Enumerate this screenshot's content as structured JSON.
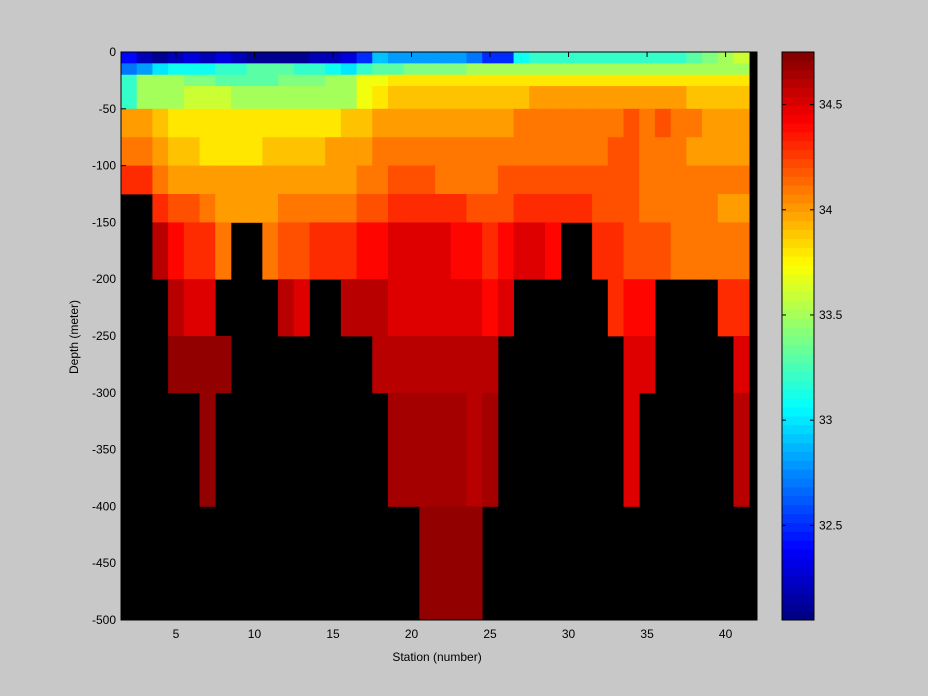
{
  "chart_data": {
    "type": "heatmap",
    "xlabel": "Station (number)",
    "ylabel": "Depth (meter)",
    "xlim": [
      1.5,
      42
    ],
    "ylim": [
      -500,
      0
    ],
    "x_ticks": [
      5,
      10,
      15,
      20,
      25,
      30,
      35,
      40
    ],
    "y_ticks": [
      0,
      -50,
      -100,
      -150,
      -200,
      -250,
      -300,
      -350,
      -400,
      -450,
      -500
    ],
    "x": [
      2,
      3,
      4,
      5,
      6,
      7,
      8,
      9,
      10,
      11,
      12,
      13,
      14,
      15,
      16,
      17,
      18,
      19,
      20,
      21,
      22,
      23,
      24,
      25,
      26,
      27,
      28,
      29,
      30,
      31,
      32,
      33,
      34,
      35,
      36,
      37,
      38,
      39,
      40,
      41
    ],
    "depth_bands": [
      [
        0,
        -10
      ],
      [
        -10,
        -20
      ],
      [
        -20,
        -30
      ],
      [
        -30,
        -50
      ],
      [
        -50,
        -75
      ],
      [
        -75,
        -100
      ],
      [
        -100,
        -125
      ],
      [
        -125,
        -150
      ],
      [
        -150,
        -200
      ],
      [
        -200,
        -250
      ],
      [
        -250,
        -300
      ],
      [
        -300,
        -400
      ],
      [
        -400,
        -500
      ]
    ],
    "values": [
      [
        32.4,
        32.2,
        32.1,
        32.2,
        32.3,
        32.2,
        32.3,
        32.2,
        32.1,
        32.1,
        32.1,
        32.1,
        32.2,
        32.2,
        32.3,
        32.5,
        32.9,
        32.8,
        32.8,
        32.8,
        32.8,
        32.8,
        32.7,
        32.5,
        32.5,
        33.1,
        33.2,
        33.2,
        33.2,
        33.2,
        33.2,
        33.2,
        33.2,
        33.2,
        33.2,
        33.2,
        33.3,
        33.4,
        33.5,
        33.6
      ],
      [
        32.7,
        32.8,
        33.0,
        33.1,
        33.1,
        33.1,
        33.2,
        33.2,
        33.3,
        33.3,
        33.3,
        33.2,
        33.2,
        33.1,
        33.0,
        33.2,
        33.3,
        33.3,
        33.4,
        33.4,
        33.4,
        33.4,
        33.5,
        33.5,
        33.5,
        33.5,
        33.5,
        33.5,
        33.5,
        33.5,
        33.5,
        33.5,
        33.5,
        33.5,
        33.5,
        33.5,
        33.5,
        33.5,
        33.5,
        33.5
      ],
      [
        33.2,
        33.5,
        33.5,
        33.5,
        33.4,
        33.4,
        33.3,
        33.3,
        33.3,
        33.3,
        33.4,
        33.4,
        33.4,
        33.5,
        33.5,
        33.7,
        33.7,
        33.8,
        33.8,
        33.8,
        33.8,
        33.8,
        33.8,
        33.8,
        33.8,
        33.8,
        33.8,
        33.8,
        33.8,
        33.8,
        33.8,
        33.8,
        33.8,
        33.8,
        33.8,
        33.8,
        33.8,
        33.8,
        33.8,
        33.8
      ],
      [
        33.2,
        33.5,
        33.5,
        33.5,
        33.6,
        33.6,
        33.6,
        33.5,
        33.5,
        33.5,
        33.5,
        33.5,
        33.5,
        33.5,
        33.5,
        33.7,
        33.8,
        33.9,
        33.9,
        33.9,
        33.9,
        33.9,
        33.9,
        33.9,
        33.9,
        33.9,
        34.0,
        34.0,
        34.0,
        34.0,
        34.0,
        34.0,
        34.0,
        34.0,
        34.0,
        34.0,
        33.9,
        33.9,
        33.9,
        33.9
      ],
      [
        34.0,
        34.0,
        33.9,
        33.8,
        33.8,
        33.8,
        33.8,
        33.8,
        33.8,
        33.8,
        33.8,
        33.8,
        33.8,
        33.8,
        33.9,
        33.9,
        34.0,
        34.0,
        34.0,
        34.0,
        34.0,
        34.0,
        34.0,
        34.0,
        34.0,
        34.1,
        34.1,
        34.1,
        34.1,
        34.1,
        34.1,
        34.1,
        34.2,
        34.1,
        34.2,
        34.1,
        34.1,
        34.0,
        34.0,
        34.0
      ],
      [
        34.1,
        34.1,
        34.0,
        33.9,
        33.9,
        33.8,
        33.8,
        33.8,
        33.8,
        33.9,
        33.9,
        33.9,
        33.9,
        34.0,
        34.0,
        34.0,
        34.1,
        34.1,
        34.1,
        34.1,
        34.1,
        34.1,
        34.1,
        34.1,
        34.1,
        34.1,
        34.1,
        34.1,
        34.1,
        34.1,
        34.1,
        34.2,
        34.2,
        34.1,
        34.1,
        34.1,
        34.0,
        34.0,
        34.0,
        34.0
      ],
      [
        34.3,
        34.3,
        34.1,
        34.0,
        34.0,
        34.0,
        34.0,
        34.0,
        34.0,
        34.0,
        34.0,
        34.0,
        34.0,
        34.0,
        34.0,
        34.1,
        34.1,
        34.2,
        34.2,
        34.2,
        34.1,
        34.1,
        34.1,
        34.1,
        34.2,
        34.2,
        34.2,
        34.2,
        34.2,
        34.2,
        34.2,
        34.2,
        34.2,
        34.1,
        34.1,
        34.1,
        34.1,
        34.1,
        34.1,
        34.1
      ],
      [
        null,
        null,
        34.3,
        34.2,
        34.2,
        34.1,
        34.0,
        34.0,
        34.0,
        34.0,
        34.1,
        34.1,
        34.1,
        34.1,
        34.1,
        34.2,
        34.2,
        34.3,
        34.3,
        34.3,
        34.3,
        34.3,
        34.2,
        34.2,
        34.2,
        34.3,
        34.3,
        34.3,
        34.3,
        34.3,
        34.2,
        34.2,
        34.2,
        34.1,
        34.1,
        34.1,
        34.1,
        34.1,
        34.0,
        34.0
      ],
      [
        null,
        null,
        34.6,
        34.4,
        34.3,
        34.3,
        34.1,
        null,
        null,
        34.1,
        34.2,
        34.2,
        34.3,
        34.3,
        34.3,
        34.4,
        34.4,
        34.5,
        34.5,
        34.5,
        34.5,
        34.4,
        34.4,
        34.3,
        34.4,
        34.5,
        34.5,
        34.4,
        null,
        null,
        34.3,
        34.3,
        34.2,
        34.2,
        34.2,
        34.1,
        34.1,
        34.1,
        34.1,
        34.1
      ],
      [
        null,
        null,
        null,
        34.6,
        34.5,
        34.5,
        null,
        null,
        null,
        null,
        34.6,
        34.5,
        null,
        null,
        34.6,
        34.6,
        34.6,
        34.5,
        34.5,
        34.5,
        34.5,
        34.5,
        34.5,
        34.4,
        34.5,
        null,
        null,
        null,
        null,
        null,
        null,
        34.3,
        34.4,
        34.4,
        null,
        null,
        null,
        null,
        34.3,
        34.3
      ],
      [
        null,
        null,
        null,
        34.7,
        34.7,
        34.7,
        34.7,
        null,
        null,
        null,
        null,
        null,
        null,
        null,
        null,
        null,
        34.6,
        34.6,
        34.6,
        34.6,
        34.6,
        34.6,
        34.6,
        34.6,
        null,
        null,
        null,
        null,
        null,
        null,
        null,
        null,
        34.5,
        34.5,
        null,
        null,
        null,
        null,
        null,
        34.5
      ],
      [
        null,
        null,
        null,
        null,
        null,
        34.7,
        null,
        null,
        null,
        null,
        null,
        null,
        null,
        null,
        null,
        null,
        null,
        34.65,
        34.65,
        34.65,
        34.65,
        34.65,
        34.6,
        34.65,
        null,
        null,
        null,
        null,
        null,
        null,
        null,
        null,
        34.5,
        null,
        null,
        null,
        null,
        null,
        null,
        34.6
      ],
      [
        null,
        null,
        null,
        null,
        null,
        null,
        null,
        null,
        null,
        null,
        null,
        null,
        null,
        null,
        null,
        null,
        null,
        null,
        null,
        34.7,
        34.7,
        34.7,
        34.7,
        null,
        null,
        null,
        null,
        null,
        null,
        null,
        null,
        null,
        null,
        null,
        null,
        null,
        null,
        null,
        null,
        null
      ]
    ],
    "no_data_color": "#000000",
    "colorbar": {
      "colormap": "jet",
      "vmin": 32.05,
      "vmax": 34.75,
      "ticks": [
        32.5,
        33,
        33.5,
        34,
        34.5
      ],
      "placement": "right"
    },
    "grid": false
  }
}
